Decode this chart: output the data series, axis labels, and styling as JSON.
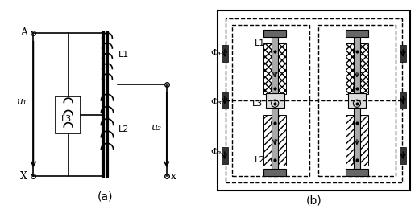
{
  "fig_width": 5.2,
  "fig_height": 2.6,
  "dpi": 100,
  "background": "#ffffff",
  "line_color": "#000000",
  "gray_color": "#888888",
  "label_a": "A",
  "label_x_left": "X",
  "label_x_right": "x",
  "label_x_right2": "x",
  "label_u1": "u₁",
  "label_u2": "u₂",
  "label_L1": "L1",
  "label_L2": "L2",
  "label_L3": "L3",
  "label_a_caption": "(a)",
  "label_b_caption": "(b)",
  "phi1": "Φ₁",
  "phi2": "Φ₂",
  "phi3": "Φ₃"
}
